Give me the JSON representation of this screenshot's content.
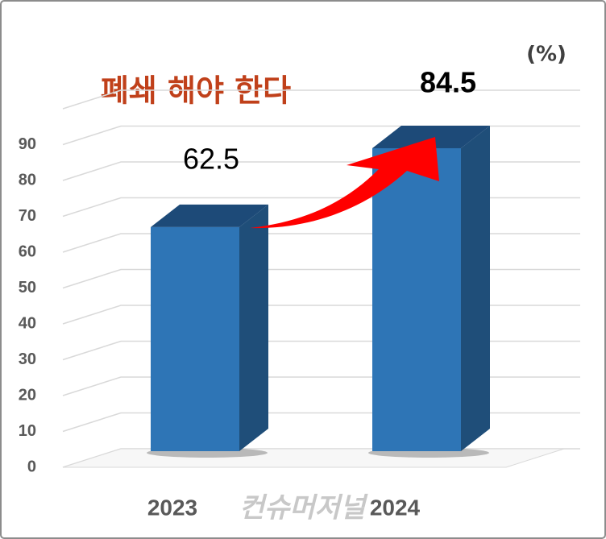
{
  "chart_data": {
    "type": "bar3d",
    "annotation": "폐쇄 해야 한다",
    "unit_label": "(%)",
    "watermark": "컨슈머저널",
    "categories": [
      "2023",
      "2024"
    ],
    "values": [
      62.5,
      84.5
    ],
    "ylim": [
      0,
      100
    ],
    "yticks": [
      0,
      10,
      20,
      30,
      40,
      50,
      60,
      70,
      80,
      90
    ],
    "grid": true,
    "color": "#2e75b6"
  }
}
